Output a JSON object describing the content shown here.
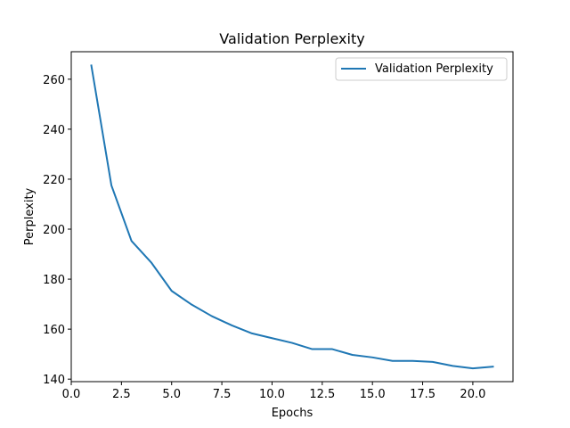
{
  "chart_data": {
    "type": "line",
    "title": "Validation Perplexity",
    "xlabel": "Epochs",
    "ylabel": "Perplexity",
    "xlim": [
      0.0,
      22.0
    ],
    "ylim": [
      139.0,
      271.0
    ],
    "x_ticks": [
      0.0,
      2.5,
      5.0,
      7.5,
      10.0,
      12.5,
      15.0,
      17.5,
      20.0
    ],
    "x_tick_labels": [
      "0.0",
      "2.5",
      "5.0",
      "7.5",
      "10.0",
      "12.5",
      "15.0",
      "17.5",
      "20.0"
    ],
    "y_ticks": [
      140,
      160,
      180,
      200,
      220,
      240,
      260
    ],
    "y_tick_labels": [
      "140",
      "160",
      "180",
      "200",
      "220",
      "240",
      "260"
    ],
    "grid": false,
    "legend_position": "upper right",
    "series": [
      {
        "name": "Validation Perplexity",
        "color": "#1f77b4",
        "x": [
          1,
          2,
          3,
          4,
          5,
          6,
          7,
          8,
          9,
          10,
          11,
          12,
          13,
          14,
          15,
          16,
          17,
          18,
          19,
          20,
          21
        ],
        "values": [
          265.5,
          217.5,
          195.3,
          186.5,
          175.3,
          169.8,
          165.2,
          161.5,
          158.3,
          156.4,
          154.5,
          152.0,
          152.0,
          149.7,
          148.7,
          147.3,
          147.3,
          146.9,
          145.3,
          144.3,
          145.0
        ]
      }
    ]
  }
}
